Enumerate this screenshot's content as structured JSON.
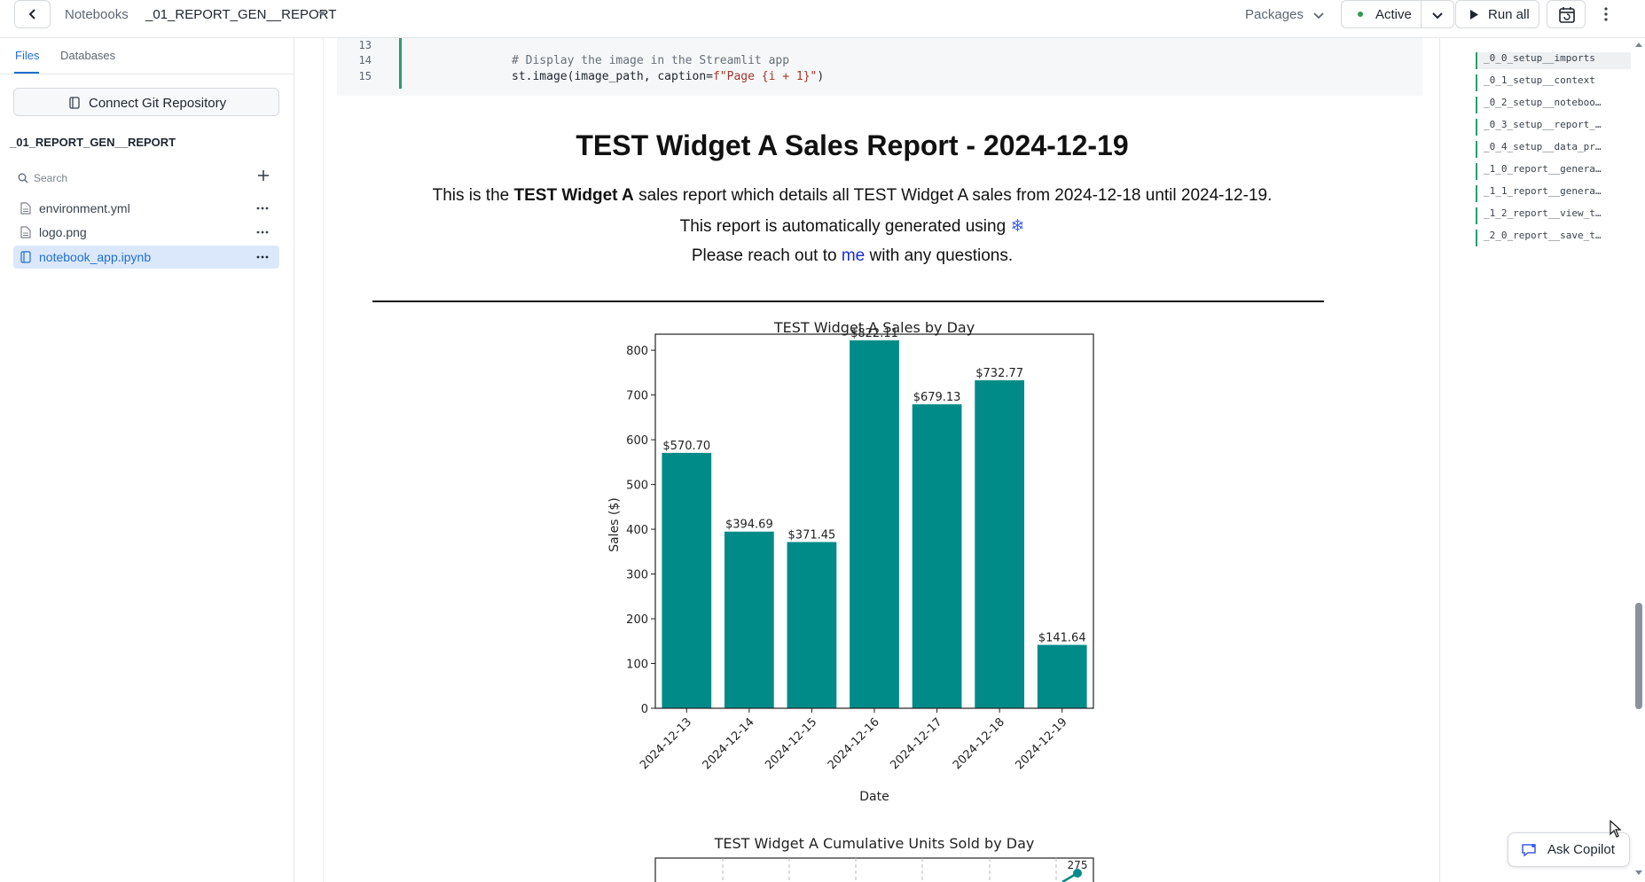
{
  "header": {
    "breadcrumb_root": "Notebooks",
    "notebook_name": "_01_REPORT_GEN__REPORT",
    "packages_label": "Packages",
    "status_label": "Active",
    "status_color": "#2a9d4a",
    "run_all_label": "Run all"
  },
  "sidebar": {
    "tabs": [
      "Files",
      "Databases"
    ],
    "active_tab": "Files",
    "git_button_label": "Connect Git Repository",
    "project_title": "_01_REPORT_GEN__REPORT",
    "search_placeholder": "Search",
    "files": [
      {
        "name": "environment.yml",
        "icon": "file-icon",
        "selected": false
      },
      {
        "name": "logo.png",
        "icon": "file-icon",
        "selected": false
      },
      {
        "name": "notebook_app.ipynb",
        "icon": "notebook-icon",
        "selected": true
      }
    ]
  },
  "code_cell": {
    "lines": [
      {
        "number": "13",
        "text": ""
      },
      {
        "number": "14",
        "text": "# Display the image in the Streamlit app"
      },
      {
        "number": "15",
        "pre": "st.image(image_path, caption=",
        "str": "f\"Page {i + 1}\"",
        "post": ")"
      }
    ]
  },
  "report": {
    "title": "TEST Widget A Sales Report - 2024-12-19",
    "intro_pre": "This is the ",
    "intro_bold": "TEST Widget A",
    "intro_post": " sales report which details all TEST Widget A sales from 2024-12-18 until 2024-12-19.",
    "auto_line": "This report is automatically generated using ",
    "snowflake_glyph": "❄",
    "contact_pre": "Please reach out to ",
    "contact_link": "me",
    "contact_post": " with any questions."
  },
  "chart_data": [
    {
      "type": "bar",
      "title": "TEST Widget A Sales by Day",
      "xlabel": "Date",
      "ylabel": "Sales ($)",
      "ylim": [
        0,
        820
      ],
      "yticks": [
        0,
        100,
        200,
        300,
        400,
        500,
        600,
        700,
        800
      ],
      "categories": [
        "2024-12-13",
        "2024-12-14",
        "2024-12-15",
        "2024-12-16",
        "2024-12-17",
        "2024-12-18",
        "2024-12-19"
      ],
      "values": [
        570.7,
        394.69,
        371.45,
        822.11,
        679.13,
        732.77,
        141.64
      ],
      "data_labels": [
        "$570.70",
        "$394.69",
        "$371.45",
        "$822.11",
        "$679.13",
        "$732.77",
        "$141.64"
      ],
      "bar_color": "#008b88",
      "grid": false
    },
    {
      "type": "line",
      "title": "TEST Widget A Cumulative Units Sold by Day",
      "visible_data_labels": [
        "275"
      ],
      "line_color": "#008b88",
      "grid": true
    }
  ],
  "outline": {
    "items": [
      "_0_0_setup__imports",
      "_0_1_setup__context",
      "_0_2_setup__noteboo…",
      "_0_3_setup__report_…",
      "_0_4_setup__data_pr…",
      "_1_0_report__genera…",
      "_1_1_report__genera…",
      "_1_2_report__view_t…",
      "_2_0_report__save_t…"
    ]
  },
  "copilot": {
    "label": "Ask Copilot"
  }
}
